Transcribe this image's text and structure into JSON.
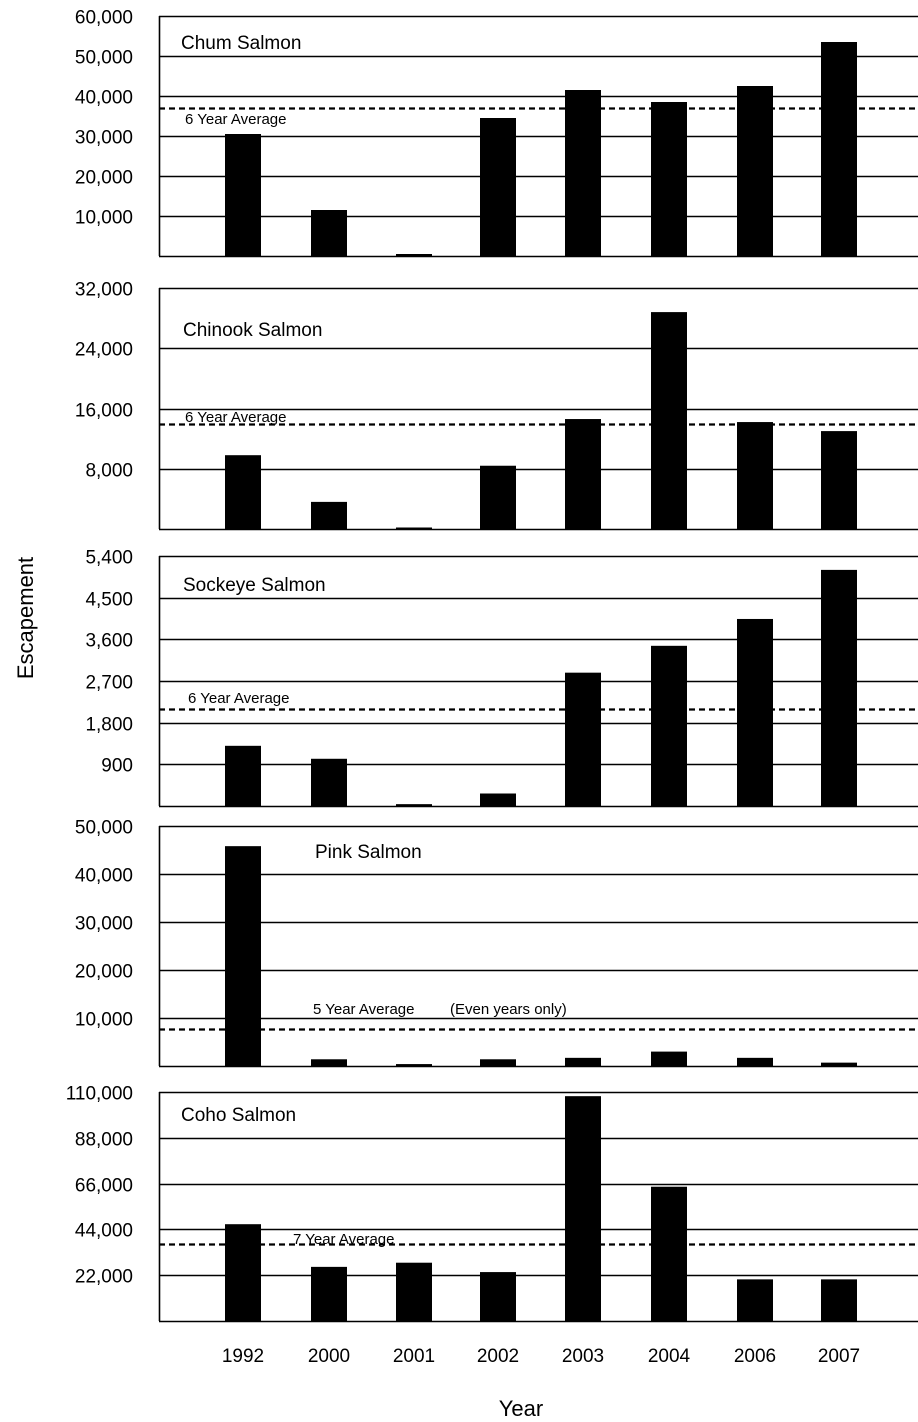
{
  "chart_data": {
    "type": "bar",
    "categories": [
      "1992",
      "2000",
      "2001",
      "2002",
      "2003",
      "2004",
      "2006",
      "2007"
    ],
    "xlabel": "Year",
    "ylabel": "Escapement",
    "bar_color": "#000000",
    "grid": true,
    "panels": [
      {
        "title": "Chum Salmon",
        "ylim": [
          0,
          60000
        ],
        "yticks": [
          10000,
          20000,
          30000,
          40000,
          50000,
          60000
        ],
        "ytick_labels": [
          "10,000",
          "20,000",
          "30,000",
          "40,000",
          "50,000",
          "60,000"
        ],
        "values": [
          30500,
          11500,
          500,
          34500,
          41500,
          38500,
          42500,
          53500
        ],
        "average": {
          "label": "6 Year Average",
          "value": 37000
        }
      },
      {
        "title": "Chinook Salmon",
        "ylim": [
          0,
          32000
        ],
        "yticks": [
          8000,
          16000,
          24000,
          32000
        ],
        "ytick_labels": [
          "8,000",
          "16,000",
          "24,000",
          "32,000"
        ],
        "values": [
          9800,
          3600,
          50,
          8400,
          14600,
          28800,
          14200,
          13000
        ],
        "average": {
          "label": "6 Year Average",
          "value": 14000
        }
      },
      {
        "title": "Sockeye Salmon",
        "ylim": [
          0,
          5400
        ],
        "yticks": [
          900,
          1800,
          2700,
          3600,
          4500,
          5400
        ],
        "ytick_labels": [
          "900",
          "1,800",
          "2,700",
          "3,600",
          "4,500",
          "5,400"
        ],
        "values": [
          1300,
          1020,
          40,
          270,
          2880,
          3460,
          4040,
          5100
        ],
        "average": {
          "label": "6 Year Average",
          "value": 2100
        }
      },
      {
        "title": "Pink Salmon",
        "ylim": [
          0,
          50000
        ],
        "yticks": [
          10000,
          20000,
          30000,
          40000,
          50000
        ],
        "ytick_labels": [
          "10,000",
          "20,000",
          "30,000",
          "40,000",
          "50,000"
        ],
        "values": [
          45800,
          1400,
          400,
          1400,
          1700,
          3000,
          1700,
          700
        ],
        "average": {
          "label": "5 Year Average",
          "value": 7800,
          "note": "(Even years only)"
        }
      },
      {
        "title": "Coho Salmon",
        "ylim": [
          0,
          110000
        ],
        "yticks": [
          22000,
          44000,
          66000,
          88000,
          110000
        ],
        "ytick_labels": [
          "22,000",
          "44,000",
          "66,000",
          "88,000",
          "110,000"
        ],
        "values": [
          46500,
          26000,
          28000,
          23500,
          108000,
          64500,
          20000,
          20000
        ],
        "average": {
          "label": "7 Year Average",
          "value": 37000
        }
      }
    ]
  }
}
